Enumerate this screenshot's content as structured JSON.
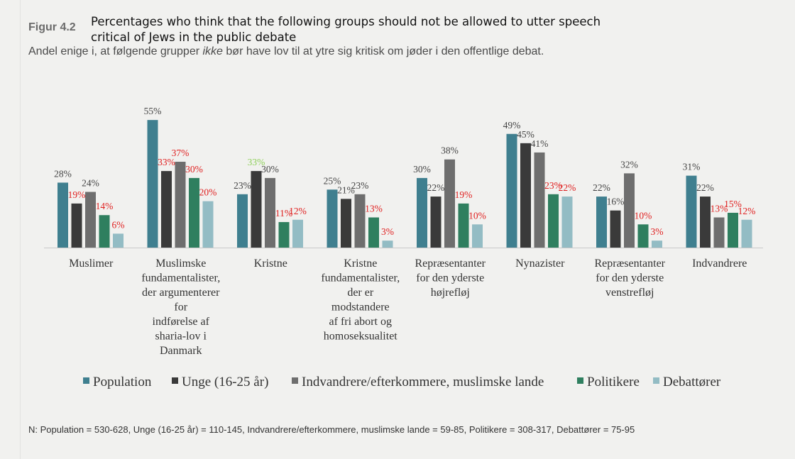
{
  "figure_label": "Figur 4.2",
  "title_en": "Percentages who think that the following groups should not be allowed to utter speech critical of Jews in the public debate",
  "subtitle": {
    "before": "Andel enige i, at følgende grupper ",
    "emph": "ikke",
    "after": " bør have lov til at ytre sig kritisk om jøder i den offentlige debat."
  },
  "note": "N: Population = 530-628, Unge (16-25 år) = 110-145, Indvandrere/efterkommere, muslimske lande = 59-85, Politikere = 308-317, Debattører = 75-95",
  "chart_data": {
    "type": "bar",
    "categories": [
      [
        "Muslimer"
      ],
      [
        "Muslimske",
        "fundamentalister,",
        "der argumenterer",
        "for",
        "indførelse af",
        "sharia-lov i",
        "Danmark"
      ],
      [
        "Kristne"
      ],
      [
        "Kristne",
        "fundamentalister,",
        "der er",
        "modstandere",
        "af fri abort og",
        "homoseksualitet"
      ],
      [
        "Repræsentanter",
        "for den yderste",
        "højrefløj"
      ],
      [
        "Nynazister"
      ],
      [
        "Repræsentanter",
        "for den yderste",
        "venstrefløj"
      ],
      [
        "Indvandrere"
      ]
    ],
    "series": [
      {
        "name": "Population",
        "color": "#3f7f8f",
        "values": [
          28,
          55,
          23,
          25,
          30,
          49,
          22,
          31
        ]
      },
      {
        "name": "Unge (16-25 år)",
        "color": "#3a3a3a",
        "values": [
          19,
          33,
          33,
          21,
          22,
          45,
          16,
          22
        ]
      },
      {
        "name": "Indvandrere/efterkommere, muslimske lande",
        "color": "#6e6e6e",
        "values": [
          24,
          37,
          30,
          23,
          38,
          41,
          32,
          13
        ]
      },
      {
        "name": "Politikere",
        "color": "#2f7f5f",
        "values": [
          14,
          30,
          11,
          13,
          19,
          23,
          10,
          15
        ]
      },
      {
        "name": "Debattører",
        "color": "#93bcc4",
        "values": [
          6,
          20,
          12,
          3,
          10,
          22,
          3,
          12
        ]
      }
    ],
    "data_labels": [
      [
        {
          "text": "28%",
          "color": "#444444"
        },
        {
          "text": "19%",
          "color": "#e02020"
        },
        {
          "text": "24%",
          "color": "#444444"
        },
        {
          "text": "14%",
          "color": "#e02020"
        },
        {
          "text": "6%",
          "color": "#e02020"
        }
      ],
      [
        {
          "text": "55%",
          "color": "#444444"
        },
        {
          "text": "33%",
          "color": "#e02020"
        },
        {
          "text": "37%",
          "color": "#e02020"
        },
        {
          "text": "30%",
          "color": "#e02020"
        },
        {
          "text": "20%",
          "color": "#e02020"
        }
      ],
      [
        {
          "text": "23%",
          "color": "#444444"
        },
        {
          "text": "33%",
          "color": "#8fd05a"
        },
        {
          "text": "30%",
          "color": "#444444"
        },
        {
          "text": "11%",
          "color": "#e02020"
        },
        {
          "text": "12%",
          "color": "#e02020"
        }
      ],
      [
        {
          "text": "25%",
          "color": "#444444"
        },
        {
          "text": "21%",
          "color": "#444444"
        },
        {
          "text": "23%",
          "color": "#444444"
        },
        {
          "text": "13%",
          "color": "#e02020"
        },
        {
          "text": "3%",
          "color": "#e02020"
        }
      ],
      [
        {
          "text": "30%",
          "color": "#444444"
        },
        {
          "text": "22%",
          "color": "#444444"
        },
        {
          "text": "38%",
          "color": "#444444"
        },
        {
          "text": "19%",
          "color": "#e02020"
        },
        {
          "text": "10%",
          "color": "#e02020"
        }
      ],
      [
        {
          "text": "49%",
          "color": "#444444"
        },
        {
          "text": "45%",
          "color": "#444444"
        },
        {
          "text": "41%",
          "color": "#444444"
        },
        {
          "text": "23%",
          "color": "#e02020"
        },
        {
          "text": "22%",
          "color": "#e02020"
        }
      ],
      [
        {
          "text": "22%",
          "color": "#444444"
        },
        {
          "text": "16%",
          "color": "#444444"
        },
        {
          "text": "32%",
          "color": "#444444"
        },
        {
          "text": "10%",
          "color": "#e02020"
        },
        {
          "text": "3%",
          "color": "#e02020"
        }
      ],
      [
        {
          "text": "31%",
          "color": "#444444"
        },
        {
          "text": "22%",
          "color": "#444444"
        },
        {
          "text": "13%",
          "color": "#e02020"
        },
        {
          "text": "15%",
          "color": "#e02020"
        },
        {
          "text": "12%",
          "color": "#e02020"
        }
      ]
    ],
    "ylim": [
      0,
      60
    ],
    "grid": false,
    "legend_position": "bottom"
  }
}
